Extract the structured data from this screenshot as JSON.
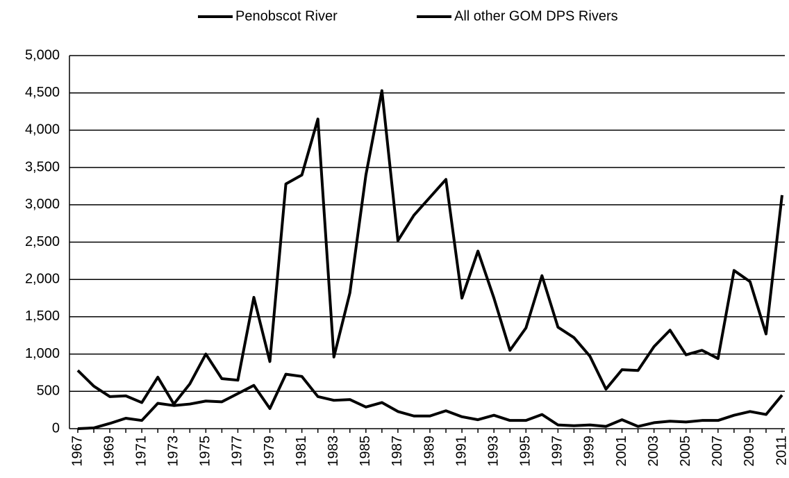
{
  "chart_data": {
    "type": "line",
    "categories": [
      "1967",
      null,
      "1969",
      null,
      "1971",
      null,
      "1973",
      null,
      "1975",
      null,
      "1977",
      null,
      "1979",
      null,
      "1981",
      null,
      "1983",
      null,
      "1985",
      null,
      "1987",
      null,
      "1989",
      null,
      "1991",
      null,
      "1993",
      null,
      "1995",
      null,
      "1997",
      null,
      "1999",
      null,
      "2001",
      null,
      "2003",
      null,
      "2005",
      null,
      "2007",
      null,
      "2009",
      null,
      "2011"
    ],
    "series": [
      {
        "name": "Penobscot River",
        "color": "#000000",
        "values": [
          780,
          570,
          430,
          440,
          350,
          690,
          330,
          600,
          1000,
          670,
          650,
          1760,
          900,
          3280,
          3400,
          4150,
          960,
          1820,
          3400,
          4530,
          2520,
          2860,
          3100,
          3340,
          1750,
          2380,
          1750,
          1050,
          1350,
          2050,
          1360,
          1220,
          970,
          530,
          790,
          780,
          1100,
          1320,
          990,
          1050,
          940,
          2120,
          1970,
          1270,
          3130
        ]
      },
      {
        "name": "All other GOM DPS Rivers",
        "color": "#000000",
        "values": [
          0,
          10,
          70,
          140,
          110,
          340,
          310,
          330,
          370,
          360,
          470,
          580,
          270,
          730,
          700,
          430,
          380,
          390,
          290,
          350,
          230,
          170,
          170,
          240,
          160,
          120,
          180,
          110,
          110,
          190,
          50,
          40,
          50,
          30,
          120,
          30,
          80,
          100,
          90,
          110,
          110,
          180,
          230,
          190,
          450
        ]
      }
    ],
    "ylim": [
      0,
      5000
    ],
    "yticks": [
      0,
      500,
      {
        "value": 1000,
        "label": "1,000"
      },
      {
        "value": 1500,
        "label": "1,500"
      },
      {
        "value": 2000,
        "label": "2,000"
      },
      {
        "value": 2500,
        "label": "2,500"
      },
      {
        "value": 3000,
        "label": "3,000"
      },
      {
        "value": 3500,
        "label": "3,500"
      },
      {
        "value": 4000,
        "label": "4,000"
      },
      {
        "value": 4500,
        "label": "4,500"
      },
      {
        "value": 5000,
        "label": "5,000"
      }
    ],
    "grid": true,
    "legend": "top"
  }
}
